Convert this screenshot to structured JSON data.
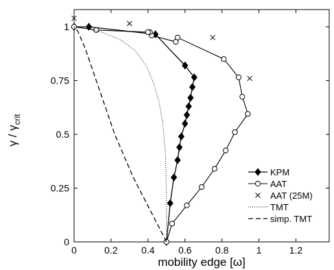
{
  "chart_data": {
    "type": "line",
    "xlabel": "mobility edge [ω]",
    "ylabel": {
      "main": "γ / γ",
      "sub": "crit"
    },
    "xlim": [
      0,
      1.38
    ],
    "ylim": [
      0,
      1.08
    ],
    "xticks": [
      0,
      0.2,
      0.4,
      0.6,
      0.8,
      1,
      1.2
    ],
    "xtick_labels": [
      "0",
      "0.2",
      "0.4",
      "0.6",
      "0.8",
      "1",
      "1.2"
    ],
    "yticks": [
      0,
      0.25,
      0.5,
      0.75,
      1
    ],
    "ytick_labels": [
      "0",
      "0.25",
      "0.5",
      "0.75",
      "1"
    ],
    "grid": false,
    "legend_position": "bottom-right",
    "series": [
      {
        "name": "KPM",
        "style": "solid line, filled diamond markers",
        "color": "#000000",
        "points": [
          [
            0.5,
            0
          ],
          [
            0.52,
            0.18
          ],
          [
            0.54,
            0.3
          ],
          [
            0.56,
            0.38
          ],
          [
            0.57,
            0.44
          ],
          [
            0.58,
            0.49
          ],
          [
            0.6,
            0.55
          ],
          [
            0.61,
            0.59
          ],
          [
            0.62,
            0.63
          ],
          [
            0.63,
            0.67
          ],
          [
            0.64,
            0.72
          ],
          [
            0.65,
            0.765
          ],
          [
            0.6,
            0.82
          ],
          [
            0.44,
            0.965
          ],
          [
            0.08,
            1.0
          ],
          [
            0,
            1.0
          ]
        ]
      },
      {
        "name": "AAT",
        "style": "solid line, open circle markers",
        "color": "#000000",
        "points": [
          [
            0.5,
            0
          ],
          [
            0.53,
            0.085
          ],
          [
            0.61,
            0.17
          ],
          [
            0.69,
            0.255
          ],
          [
            0.76,
            0.34
          ],
          [
            0.82,
            0.425
          ],
          [
            0.87,
            0.51
          ],
          [
            0.94,
            0.595
          ],
          [
            0.91,
            0.675
          ],
          [
            0.89,
            0.765
          ],
          [
            0.81,
            0.85
          ],
          [
            0.56,
            0.95
          ],
          [
            0.55,
            0.93
          ],
          [
            0.42,
            0.96
          ],
          [
            0.41,
            0.975
          ],
          [
            0.4,
            0.975
          ],
          [
            0.12,
            0.985
          ],
          [
            0,
            1.0
          ]
        ]
      },
      {
        "name": "AAT (25M)",
        "style": "x markers only",
        "color": "#000000",
        "points": [
          [
            0,
            1.04
          ],
          [
            0.3,
            1.015
          ],
          [
            0.75,
            0.95
          ],
          [
            0.95,
            0.76
          ]
        ]
      },
      {
        "name": "TMT",
        "style": "dotted line",
        "color": "#000000",
        "points": [
          [
            0.5,
            0
          ],
          [
            0.5,
            0.2
          ],
          [
            0.495,
            0.4
          ],
          [
            0.48,
            0.55
          ],
          [
            0.46,
            0.65
          ],
          [
            0.43,
            0.74
          ],
          [
            0.39,
            0.82
          ],
          [
            0.33,
            0.89
          ],
          [
            0.25,
            0.94
          ],
          [
            0.15,
            0.975
          ],
          [
            0.05,
            0.995
          ],
          [
            0,
            1.0
          ]
        ]
      },
      {
        "name": "simp. TMT",
        "style": "dashed line",
        "color": "#000000",
        "points": [
          [
            0.5,
            0
          ],
          [
            0.44,
            0.1
          ],
          [
            0.38,
            0.2
          ],
          [
            0.32,
            0.3
          ],
          [
            0.27,
            0.4
          ],
          [
            0.22,
            0.5
          ],
          [
            0.18,
            0.6
          ],
          [
            0.14,
            0.7
          ],
          [
            0.1,
            0.8
          ],
          [
            0.06,
            0.9
          ],
          [
            0.02,
            0.98
          ],
          [
            0,
            1.0
          ]
        ]
      }
    ]
  }
}
